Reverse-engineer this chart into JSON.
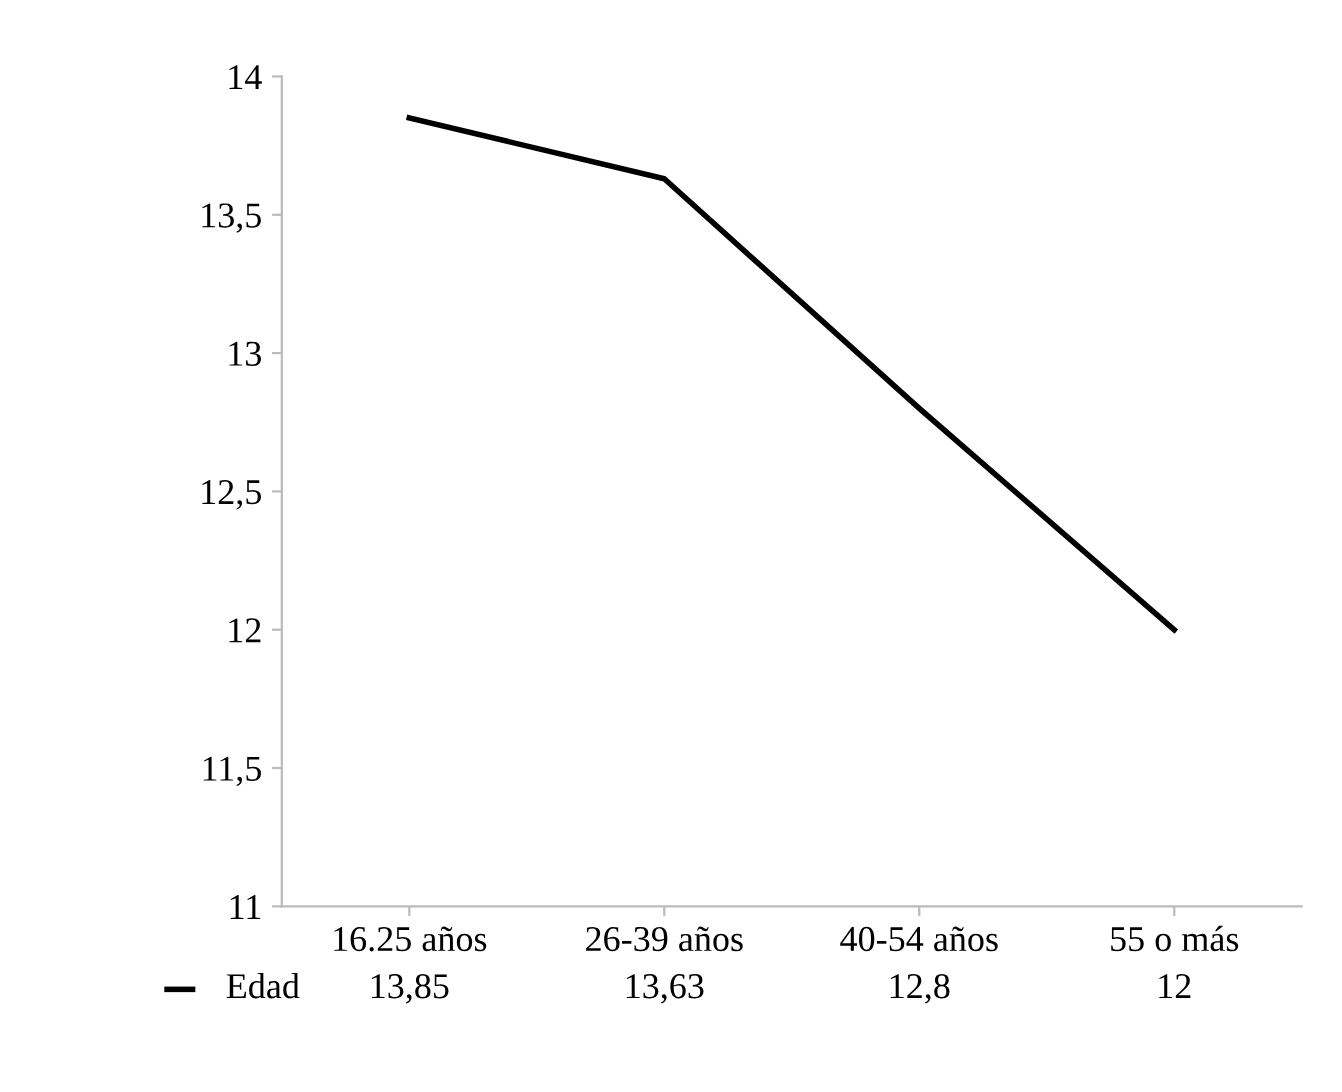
{
  "chart_data": {
    "type": "line",
    "categories": [
      "16.25 años",
      "26-39 años",
      "40-54 años",
      "55 o más"
    ],
    "series": [
      {
        "name": "Edad",
        "color": "#000000",
        "values": [
          13.85,
          13.63,
          12.8,
          12
        ],
        "value_labels": [
          "13,85",
          "13,63",
          "12,8",
          "12"
        ]
      }
    ],
    "ylim": [
      11,
      14
    ],
    "yticks": [
      11,
      {
        "value": 11.5,
        "label": "11,5"
      },
      12,
      {
        "value": 12.5,
        "label": "12,5"
      },
      13,
      {
        "value": 13.5,
        "label": "13,5"
      },
      14
    ],
    "grid": false,
    "legend": "bottom left",
    "marker": "none",
    "line_style": "solid"
  }
}
